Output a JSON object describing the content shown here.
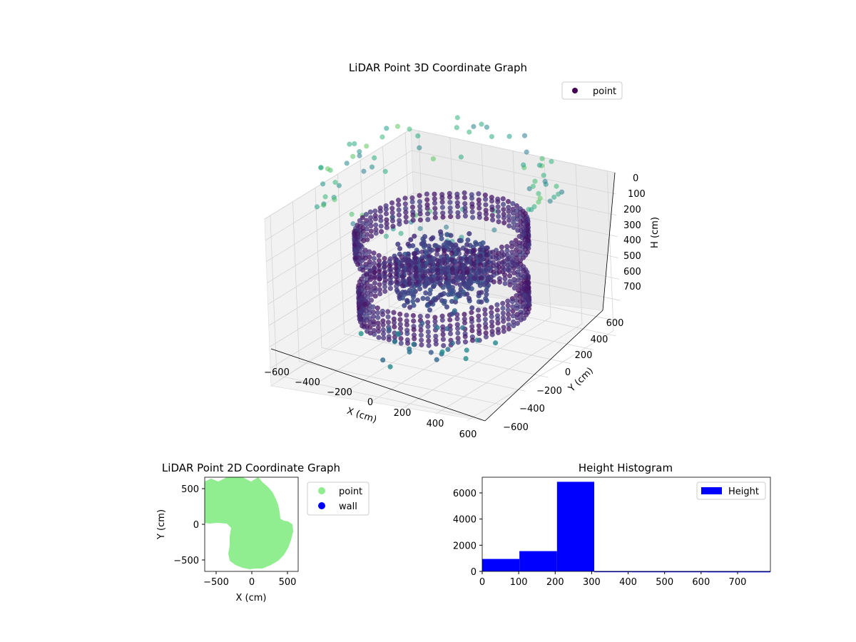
{
  "chart_data": [
    {
      "type": "scatter",
      "projection": "3d",
      "title": "LiDAR Point 3D Coordinate Graph",
      "xlabel": "X (cm)",
      "ylabel": "Y (cm)",
      "zlabel": "H (cm)",
      "xticks": [
        "−600",
        "−400",
        "−200",
        "0",
        "200",
        "400",
        "600"
      ],
      "yticks": [
        "−600",
        "−400",
        "−200",
        "0",
        "200",
        "400",
        "600"
      ],
      "zticks": [
        "0",
        "100",
        "200",
        "300",
        "400",
        "500",
        "600",
        "700"
      ],
      "xlim": [
        -650,
        650
      ],
      "ylim": [
        -650,
        650
      ],
      "zlim": [
        0,
        750
      ],
      "zaxis_inverted": true,
      "colormap": "viridis",
      "legend": {
        "entries": [
          "point"
        ],
        "placement": "upper right"
      },
      "series": [
        {
          "name": "point",
          "note_structure": "two cylindrical rings of points (outer radius ~450 cm) at heights ~150-250 cm and ~400-550 cm, a dense inner core around the center, and sparse points below the floor",
          "rings": [
            {
              "radius": 450,
              "h_top": 150,
              "h_bottom": 260
            },
            {
              "radius": 440,
              "h_top": 410,
              "h_bottom": 560
            }
          ],
          "core": {
            "radius": 250,
            "h_top": 230,
            "h_bottom": 480
          }
        }
      ]
    },
    {
      "type": "scatter",
      "title": "LiDAR Point 2D Coordinate Graph",
      "xlabel": "X (cm)",
      "ylabel": "Y (cm)",
      "xticks": [
        "−500",
        "0",
        "500"
      ],
      "yticks": [
        "−500",
        "0",
        "500"
      ],
      "xlim": [
        -670,
        650
      ],
      "ylim": [
        -660,
        660
      ],
      "legend": {
        "entries": [
          "point",
          "wall"
        ],
        "placement": "outside right"
      },
      "series": [
        {
          "name": "point",
          "color": "#90ee90"
        },
        {
          "name": "wall",
          "color": "#0000ff"
        }
      ]
    },
    {
      "type": "bar",
      "subtype": "histogram",
      "title": "Height Histogram",
      "xticks": [
        "0",
        "100",
        "200",
        "300",
        "400",
        "500",
        "600",
        "700"
      ],
      "yticks": [
        "0",
        "2000",
        "4000",
        "6000"
      ],
      "xlim": [
        0,
        790
      ],
      "ylim": [
        0,
        7200
      ],
      "legend": {
        "entries": [
          "Height"
        ],
        "placement": "upper right"
      },
      "bin_edges": [
        0,
        102,
        205,
        307,
        410,
        512,
        615,
        717,
        820
      ],
      "values": [
        950,
        1550,
        6850,
        20,
        15,
        15,
        10,
        10
      ],
      "series": [
        {
          "name": "Height",
          "color": "#0000ff"
        }
      ]
    }
  ]
}
